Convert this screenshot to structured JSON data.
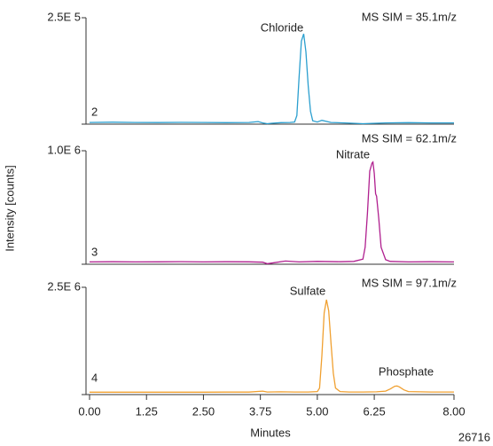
{
  "ylabel": "Intensity [counts]",
  "figure_id": "26716",
  "chart_data": [
    {
      "type": "line",
      "title": "MS SIM = 35.1m/z",
      "panel_label": "2",
      "color": "#2b9fcf",
      "annotations": [
        "Chloride"
      ],
      "xlim": [
        0,
        8
      ],
      "ylim": [
        0,
        250000
      ],
      "yticks": [
        {
          "value": 250000,
          "label": "2.5E 5"
        }
      ],
      "x": [
        0,
        0.5,
        1,
        1.5,
        2,
        2.5,
        3,
        3.5,
        3.7,
        3.8,
        3.9,
        4.0,
        4.2,
        4.4,
        4.5,
        4.55,
        4.6,
        4.65,
        4.7,
        4.75,
        4.8,
        4.85,
        4.9,
        5.0,
        5.1,
        5.3,
        5.6,
        6.0,
        6.5,
        7.0,
        7.5,
        8.0
      ],
      "values": [
        4000,
        4500,
        4000,
        3800,
        4200,
        4000,
        3500,
        4000,
        6000,
        3000,
        1000,
        2000,
        3500,
        4000,
        5000,
        20000,
        110000,
        195000,
        212000,
        170000,
        90000,
        30000,
        8000,
        5000,
        9000,
        4000,
        3000,
        1000,
        3000,
        3500,
        3000,
        3000
      ]
    },
    {
      "type": "line",
      "title": "MS SIM = 62.1m/z",
      "panel_label": "3",
      "color": "#b0208f",
      "annotations": [
        "Nitrate"
      ],
      "xlim": [
        0,
        8
      ],
      "ylim": [
        0,
        1000000
      ],
      "yticks": [
        {
          "value": 1000000,
          "label": "1.0E 6"
        }
      ],
      "x": [
        0,
        0.5,
        1,
        1.5,
        2,
        2.5,
        3,
        3.5,
        3.8,
        3.9,
        4.0,
        4.3,
        4.6,
        5.0,
        5.5,
        5.8,
        6.0,
        6.05,
        6.1,
        6.15,
        6.2,
        6.22,
        6.25,
        6.28,
        6.3,
        6.35,
        6.4,
        6.5,
        6.6,
        7.0,
        7.5,
        8.0
      ],
      "values": [
        20000,
        22000,
        20000,
        21000,
        23000,
        20000,
        22000,
        21000,
        18000,
        5000,
        10000,
        28000,
        20000,
        25000,
        22000,
        25000,
        45000,
        150000,
        450000,
        820000,
        890000,
        900000,
        800000,
        620000,
        600000,
        400000,
        150000,
        40000,
        25000,
        20000,
        22000,
        20000
      ]
    },
    {
      "type": "line",
      "title": "MS SIM = 97.1m/z",
      "panel_label": "4",
      "color": "#f0a030",
      "annotations": [
        "Sulfate",
        "Phosphate"
      ],
      "xlim": [
        0,
        8
      ],
      "ylim": [
        0,
        2500000
      ],
      "yticks": [
        {
          "value": 2500000,
          "label": "2.5E 6"
        }
      ],
      "xlabel": "Minutes",
      "xticks": [
        {
          "value": 0,
          "label": "0.00"
        },
        {
          "value": 1.25,
          "label": "1.25"
        },
        {
          "value": 2.5,
          "label": "2.50"
        },
        {
          "value": 3.75,
          "label": "3.75"
        },
        {
          "value": 5,
          "label": "5.00"
        },
        {
          "value": 6.25,
          "label": "6.25"
        },
        {
          "value": 8,
          "label": "8.00"
        }
      ],
      "x": [
        0,
        0.5,
        1,
        1.5,
        2,
        2.5,
        3,
        3.5,
        3.8,
        3.9,
        4.2,
        4.5,
        4.8,
        5.0,
        5.05,
        5.1,
        5.15,
        5.2,
        5.25,
        5.3,
        5.35,
        5.4,
        5.5,
        5.7,
        6.0,
        6.3,
        6.5,
        6.6,
        6.7,
        6.75,
        6.8,
        6.9,
        7.0,
        7.5,
        8.0
      ],
      "values": [
        55000,
        55000,
        56000,
        55000,
        56000,
        55000,
        57000,
        58000,
        80000,
        60000,
        65000,
        60000,
        60000,
        70000,
        150000,
        900000,
        1900000,
        2210000,
        1950000,
        1200000,
        500000,
        150000,
        70000,
        60000,
        60000,
        65000,
        80000,
        130000,
        195000,
        200000,
        180000,
        110000,
        70000,
        60000,
        60000
      ]
    }
  ]
}
